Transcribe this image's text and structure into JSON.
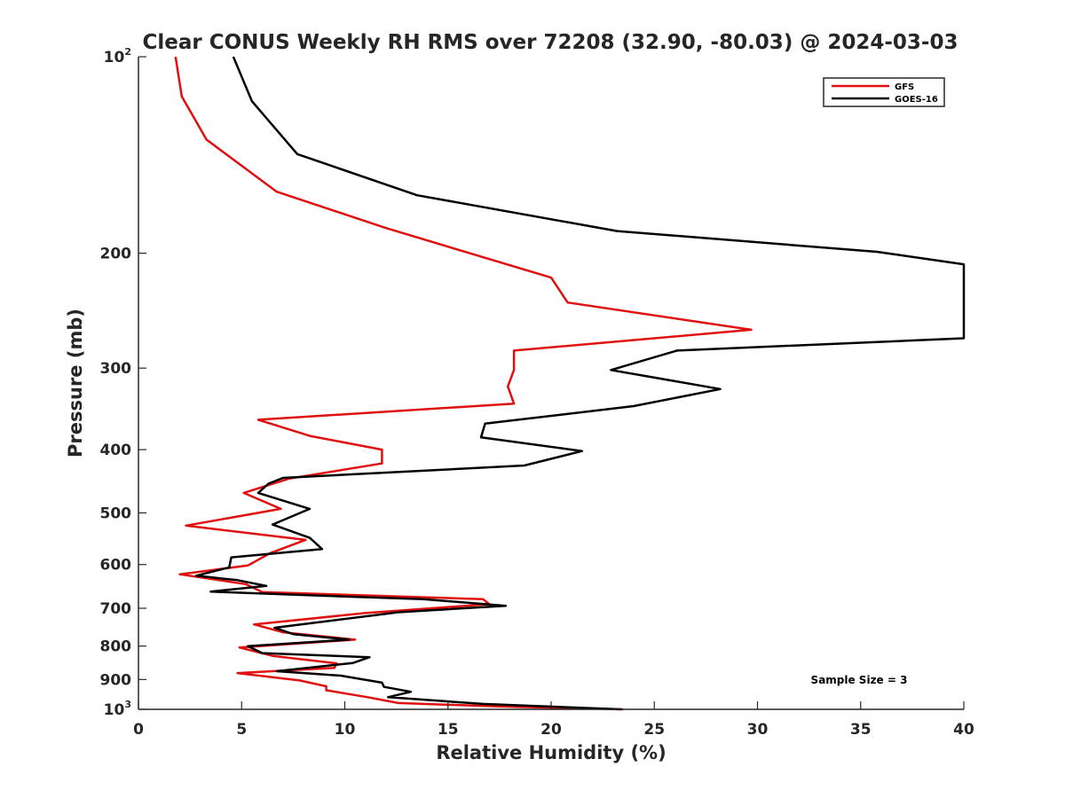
{
  "chart_data": {
    "type": "line",
    "title": "Clear CONUS Weekly RH RMS over 72208 (32.90, -80.03) @ 2024-03-03",
    "xlabel": "Relative Humidity (%)",
    "ylabel": "Pressure (mb)",
    "xlim": [
      0,
      40
    ],
    "ylim": [
      100,
      1000
    ],
    "y_scale": "log",
    "y_reversed": true,
    "grid": false,
    "legend_position": "top-right",
    "x_ticks": [
      0,
      5,
      10,
      15,
      20,
      25,
      30,
      35,
      40
    ],
    "x_tick_labels": [
      "0",
      "5",
      "10",
      "15",
      "20",
      "25",
      "30",
      "35",
      "40"
    ],
    "y_ticks": [
      {
        "value": 100,
        "base": "10",
        "exp": "2",
        "label": ""
      },
      {
        "value": 200,
        "label": "200"
      },
      {
        "value": 300,
        "label": "300"
      },
      {
        "value": 400,
        "label": "400"
      },
      {
        "value": 500,
        "label": "500"
      },
      {
        "value": 600,
        "label": "600"
      },
      {
        "value": 700,
        "label": "700"
      },
      {
        "value": 800,
        "label": "800"
      },
      {
        "value": 900,
        "label": "900"
      },
      {
        "value": 1000,
        "base": "10",
        "exp": "3",
        "label": ""
      }
    ],
    "annotation": "Sample Size = 3",
    "series": [
      {
        "name": "GFS",
        "color": "#e01010",
        "points": [
          [
            1.8,
            100
          ],
          [
            2.1,
            115
          ],
          [
            3.3,
            134
          ],
          [
            6.7,
            161
          ],
          [
            12.0,
            183
          ],
          [
            20.0,
            218
          ],
          [
            20.8,
            238
          ],
          [
            29.7,
            262
          ],
          [
            18.2,
            282
          ],
          [
            18.2,
            302
          ],
          [
            17.9,
            320
          ],
          [
            18.2,
            340
          ],
          [
            5.8,
            360
          ],
          [
            8.3,
            381
          ],
          [
            11.8,
            400
          ],
          [
            11.8,
            420
          ],
          [
            7.3,
            443
          ],
          [
            5.1,
            466
          ],
          [
            6.9,
            493
          ],
          [
            2.3,
            523
          ],
          [
            8.1,
            550
          ],
          [
            6.4,
            576
          ],
          [
            5.3,
            602
          ],
          [
            2.0,
            621
          ],
          [
            5.2,
            643
          ],
          [
            6.0,
            661
          ],
          [
            16.7,
            678
          ],
          [
            17.0,
            690
          ],
          [
            11.0,
            712
          ],
          [
            5.6,
            741
          ],
          [
            7.0,
            762
          ],
          [
            10.5,
            782
          ],
          [
            4.9,
            804
          ],
          [
            6.5,
            828
          ],
          [
            9.6,
            850
          ],
          [
            9.5,
            864
          ],
          [
            4.8,
            880
          ],
          [
            7.8,
            903
          ],
          [
            9.1,
            922
          ],
          [
            9.1,
            935
          ],
          [
            11.1,
            958
          ],
          [
            12.6,
            978
          ],
          [
            17.5,
            990
          ],
          [
            23.5,
            1000
          ]
        ]
      },
      {
        "name": "GOES-16",
        "color": "#000000",
        "points": [
          [
            4.6,
            100
          ],
          [
            5.5,
            117
          ],
          [
            7.7,
            141
          ],
          [
            13.5,
            163
          ],
          [
            23.2,
            185
          ],
          [
            35.8,
            199
          ],
          [
            40.0,
            208
          ],
          [
            40.0,
            270
          ],
          [
            26.1,
            282
          ],
          [
            22.9,
            302
          ],
          [
            28.2,
            323
          ],
          [
            24.0,
            343
          ],
          [
            16.8,
            365
          ],
          [
            16.6,
            383
          ],
          [
            21.5,
            402
          ],
          [
            18.7,
            423
          ],
          [
            7.0,
            442
          ],
          [
            6.3,
            451
          ],
          [
            5.8,
            466
          ],
          [
            8.3,
            493
          ],
          [
            6.5,
            521
          ],
          [
            8.3,
            546
          ],
          [
            8.9,
            568
          ],
          [
            4.5,
            585
          ],
          [
            4.4,
            606
          ],
          [
            2.8,
            624
          ],
          [
            4.8,
            634
          ],
          [
            6.2,
            647
          ],
          [
            3.5,
            660
          ],
          [
            7.9,
            668
          ],
          [
            13.8,
            678
          ],
          [
            17.8,
            694
          ],
          [
            12.6,
            710
          ],
          [
            6.6,
            750
          ],
          [
            7.5,
            767
          ],
          [
            10.2,
            782
          ],
          [
            5.3,
            800
          ],
          [
            6.0,
            820
          ],
          [
            11.2,
            832
          ],
          [
            10.4,
            849
          ],
          [
            6.7,
            874
          ],
          [
            9.8,
            888
          ],
          [
            11.8,
            910
          ],
          [
            11.9,
            924
          ],
          [
            13.2,
            940
          ],
          [
            12.1,
            958
          ],
          [
            16.7,
            981
          ],
          [
            23.4,
            1000
          ]
        ]
      }
    ]
  }
}
